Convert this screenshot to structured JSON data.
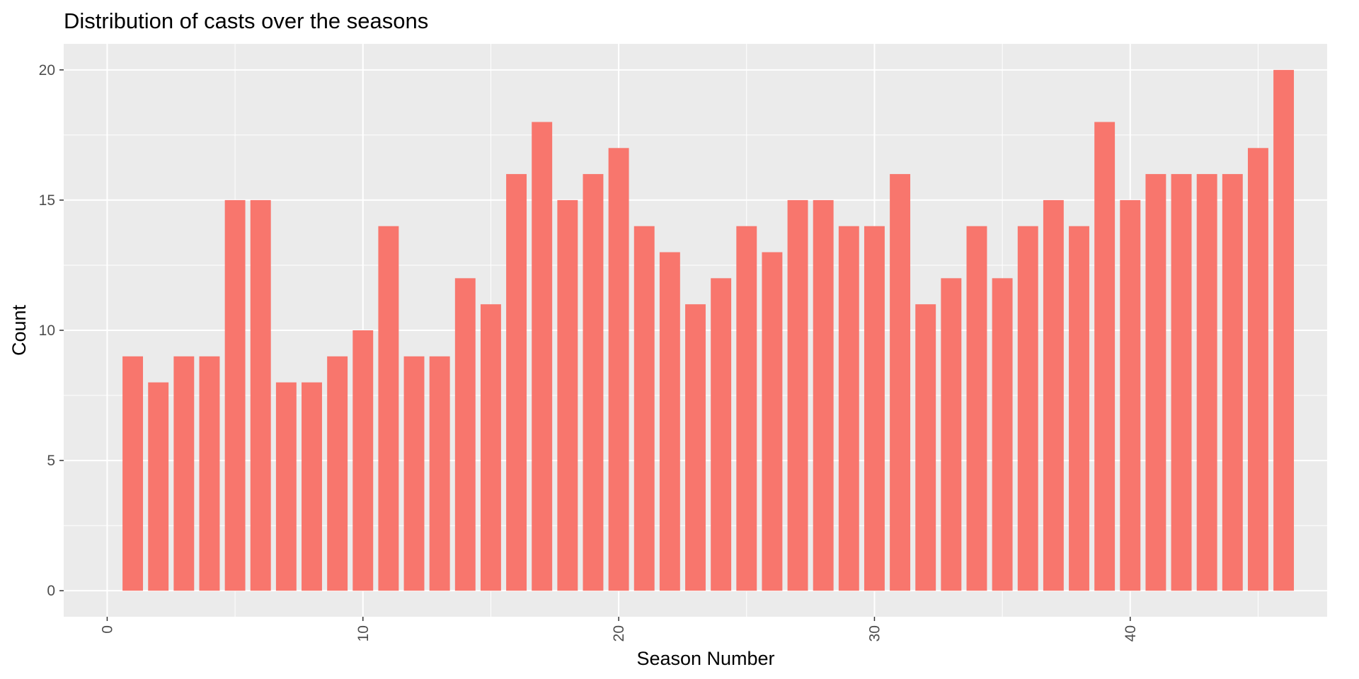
{
  "chart_data": {
    "type": "bar",
    "title": "Distribution of casts over the seasons",
    "xlabel": "Season Number",
    "ylabel": "Count",
    "x": [
      1,
      2,
      3,
      4,
      5,
      6,
      7,
      8,
      9,
      10,
      11,
      12,
      13,
      14,
      15,
      16,
      17,
      18,
      19,
      20,
      21,
      22,
      23,
      24,
      25,
      26,
      27,
      28,
      29,
      30,
      31,
      32,
      33,
      34,
      35,
      36,
      37,
      38,
      39,
      40,
      41,
      42,
      43,
      44,
      45,
      46
    ],
    "values": [
      9,
      8,
      9,
      9,
      15,
      15,
      8,
      8,
      9,
      10,
      14,
      9,
      9,
      12,
      11,
      16,
      18,
      15,
      16,
      17,
      14,
      13,
      11,
      12,
      14,
      13,
      15,
      15,
      14,
      14,
      16,
      11,
      12,
      14,
      12,
      14,
      15,
      14,
      18,
      15,
      16,
      16,
      16,
      16,
      17,
      20
    ],
    "xlim": [
      -1.7,
      47.7
    ],
    "ylim": [
      -1,
      21
    ],
    "x_ticks": [
      0,
      10,
      20,
      30,
      40
    ],
    "x_tick_labels": [
      "0",
      "10",
      "20",
      "30",
      "40"
    ],
    "y_ticks": [
      0,
      5,
      10,
      15,
      20
    ],
    "y_tick_labels": [
      "0",
      "5",
      "10",
      "15",
      "20"
    ],
    "x_tick_rotation": "vertical",
    "grid": true,
    "legend": "none",
    "bar_color": "#F8766D",
    "panel_background": "#EBEBEB",
    "grid_color": "#FFFFFF",
    "tick_label_color": "#4D4D4D"
  }
}
